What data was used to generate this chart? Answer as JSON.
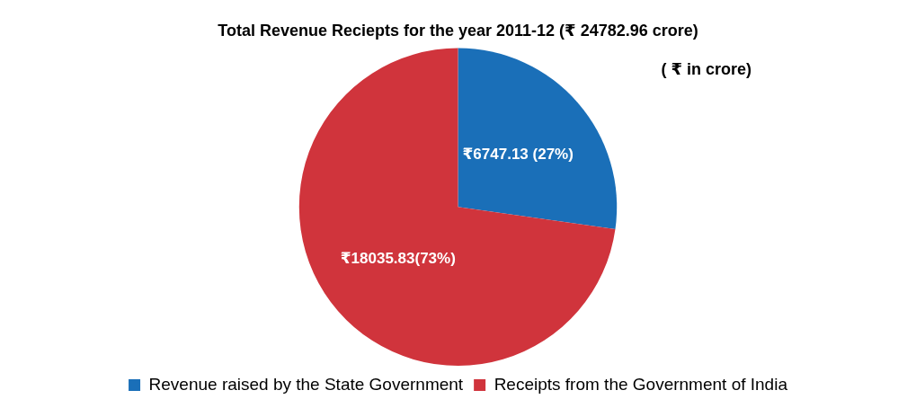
{
  "chart_data": {
    "type": "pie",
    "title": "Total Revenue Reciepts for the year 2011-12 (₹ 24782.96 crore)",
    "categories": [
      "Revenue raised by the State Government",
      "Receipts from the Government of India"
    ],
    "values": [
      6747.13,
      18035.83
    ],
    "colors": [
      "#1a6fb8",
      "#d0343c"
    ],
    "value_labels": [
      "₹6747.13 (27%)",
      "₹18035.83(73%)"
    ],
    "annotations": [
      "( ₹ in crore)"
    ],
    "legend": "bottom"
  }
}
